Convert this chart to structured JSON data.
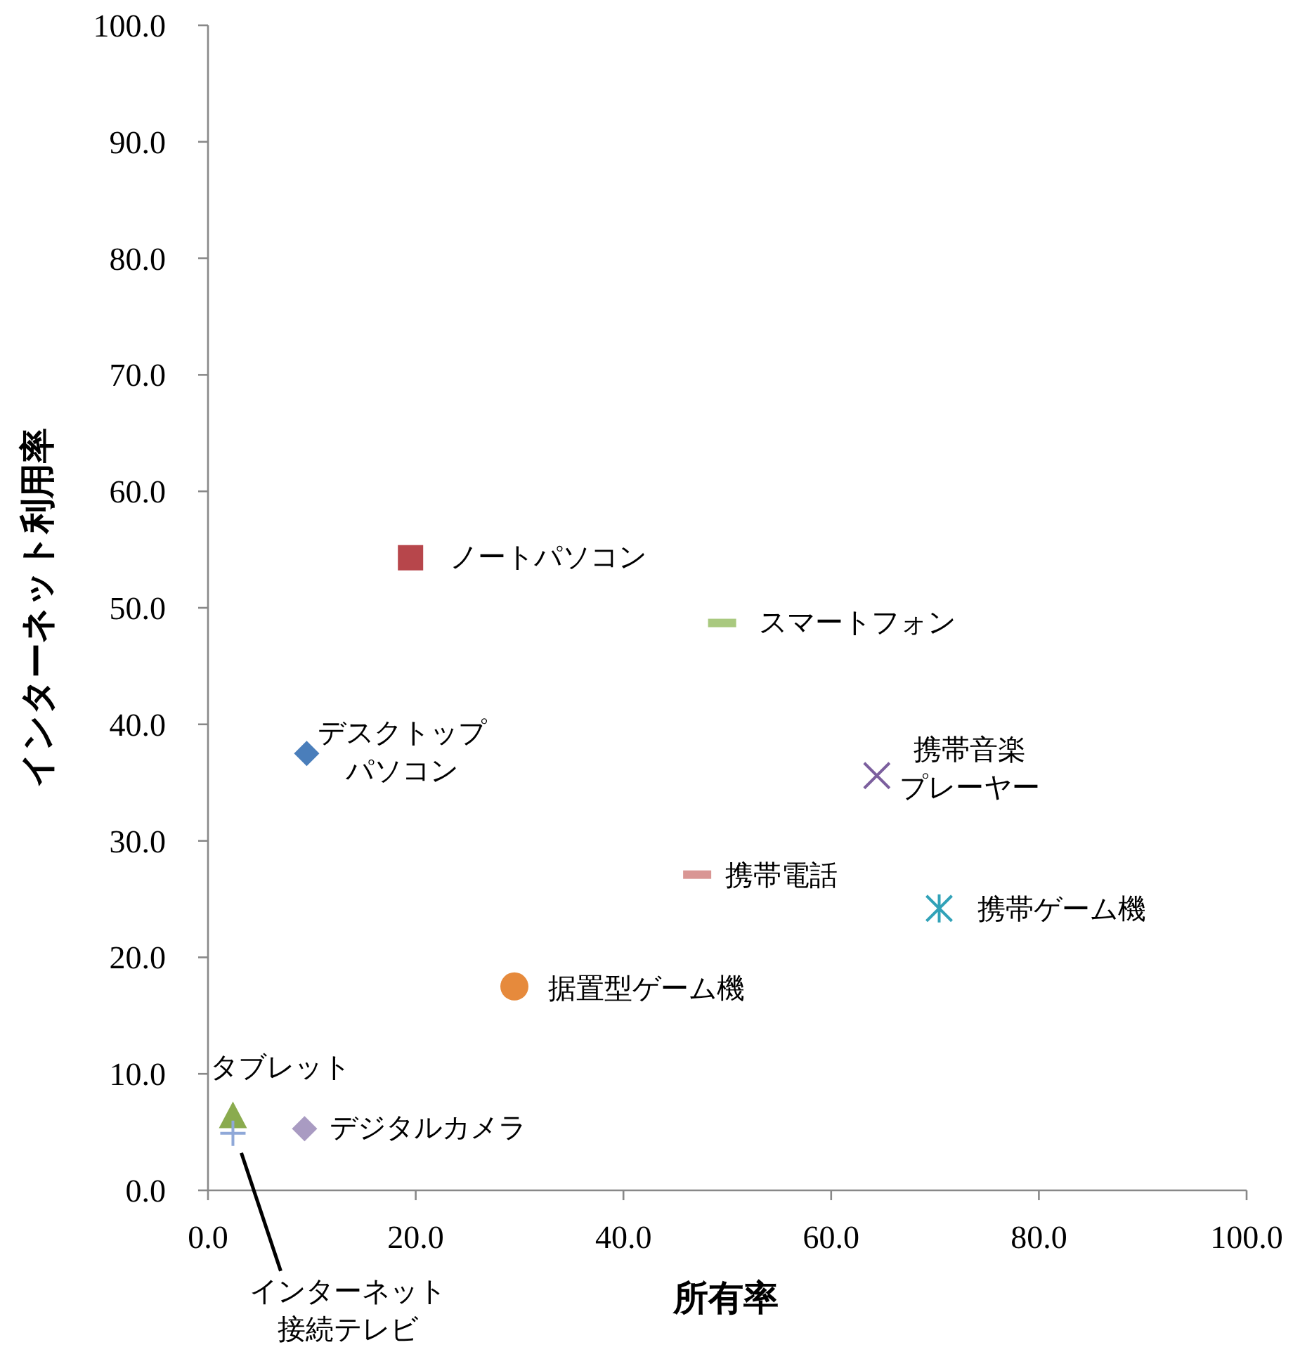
{
  "chart_data": {
    "type": "scatter",
    "xlabel": "所有率",
    "ylabel": "インターネット利用率",
    "xlim": [
      0,
      100
    ],
    "ylim": [
      0,
      100
    ],
    "xticks": [
      {
        "value": 0,
        "label": "0.0"
      },
      {
        "value": 20,
        "label": "20.0"
      },
      {
        "value": 40,
        "label": "40.0"
      },
      {
        "value": 60,
        "label": "60.0"
      },
      {
        "value": 80,
        "label": "80.0"
      },
      {
        "value": 100,
        "label": "100.0"
      }
    ],
    "yticks": [
      {
        "value": 0,
        "label": "0.0"
      },
      {
        "value": 10,
        "label": "10.0"
      },
      {
        "value": 20,
        "label": "20.0"
      },
      {
        "value": 30,
        "label": "30.0"
      },
      {
        "value": 40,
        "label": "40.0"
      },
      {
        "value": 50,
        "label": "50.0"
      },
      {
        "value": 60,
        "label": "60.0"
      },
      {
        "value": 70,
        "label": "70.0"
      },
      {
        "value": 80,
        "label": "80.0"
      },
      {
        "value": 90,
        "label": "90.0"
      },
      {
        "value": 100,
        "label": "100.0"
      }
    ],
    "grid": false,
    "legend": false,
    "series": [
      {
        "name": "デスクトップパソコン",
        "color": "#4a7ebb",
        "marker": "diamond",
        "x": [
          9.5
        ],
        "values": [
          37.5
        ]
      },
      {
        "name": "ノートパソコン",
        "color": "#b7464b",
        "marker": "square",
        "x": [
          19.5
        ],
        "values": [
          54.3
        ]
      },
      {
        "name": "スマートフォン",
        "color": "#a9c97f",
        "x": [
          49.5
        ],
        "values": [
          48.7
        ]
      },
      {
        "name": "携帯音楽プレーヤー",
        "color": "#7c5f9e",
        "marker": "cross",
        "x": [
          64.4
        ],
        "values": [
          35.6
        ]
      },
      {
        "name": "携帯電話",
        "color": "#d99694",
        "x": [
          47.1
        ],
        "values": [
          27.1
        ]
      },
      {
        "name": "携帯ゲーム機",
        "color": "#31a2b8",
        "x": [
          70.4
        ],
        "values": [
          24.2
        ]
      },
      {
        "name": "据置型ゲーム機",
        "color": "#e68a3c",
        "marker": "circle",
        "x": [
          29.5
        ],
        "values": [
          17.5
        ]
      },
      {
        "name": "タブレット",
        "color": "#8aab4e",
        "marker": "triangle",
        "x": [
          2.4
        ],
        "values": [
          6.3
        ]
      },
      {
        "name": "インターネット接続テレビ",
        "color": "#8fa8d8",
        "marker": "plus",
        "x": [
          2.4
        ],
        "values": [
          4.9
        ]
      },
      {
        "name": "デジタルカメラ",
        "color": "#a99bc2",
        "marker": "diamond",
        "x": [
          9.3
        ],
        "values": [
          5.3
        ]
      }
    ]
  }
}
